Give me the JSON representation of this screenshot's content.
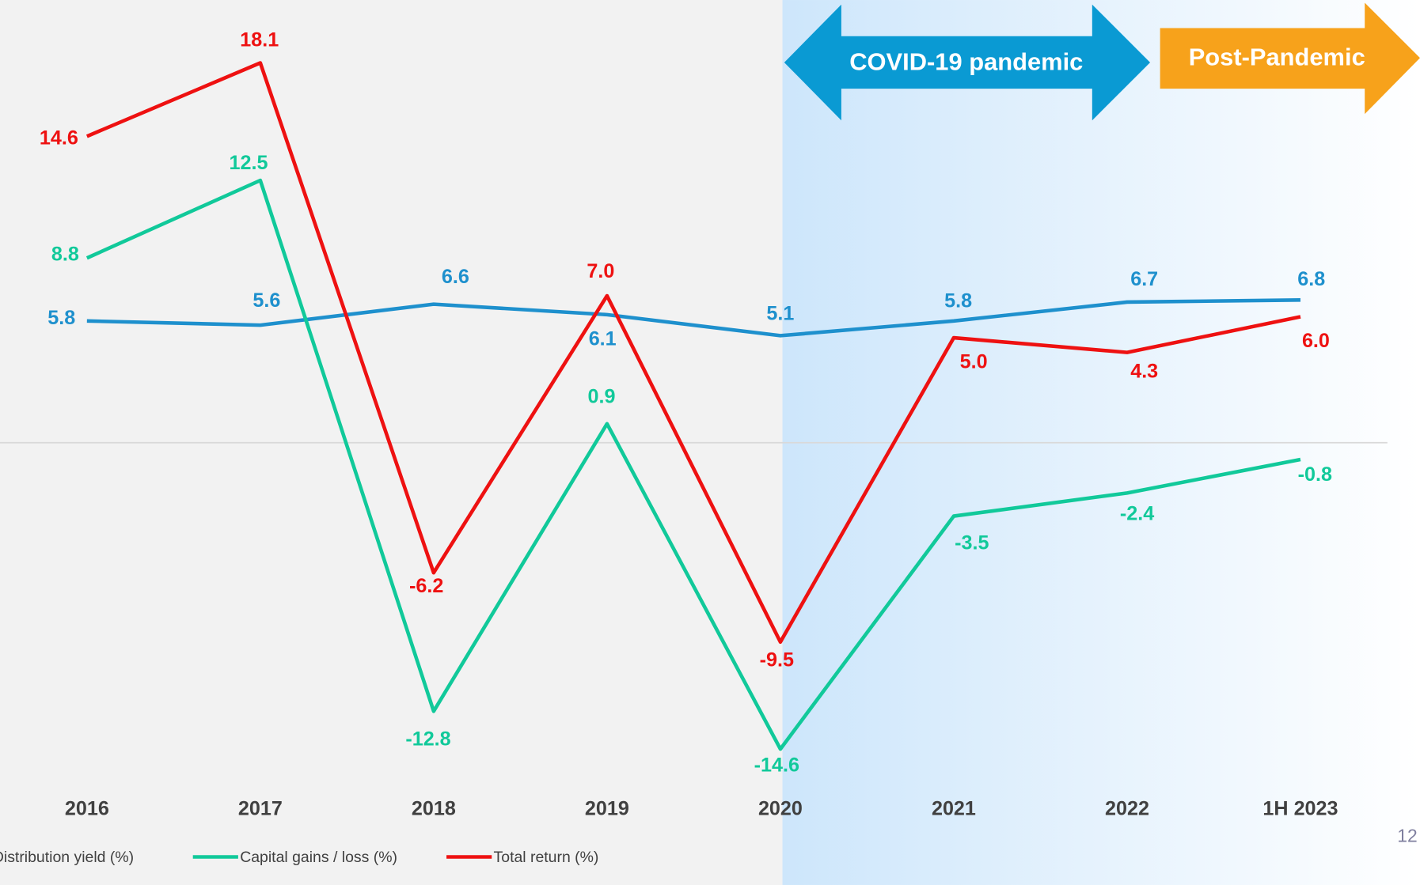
{
  "chart_data": {
    "type": "line",
    "categories": [
      "2016",
      "2017",
      "2018",
      "2019",
      "2020",
      "2021",
      "2022",
      "1H 2023"
    ],
    "series": [
      {
        "name": "Distribution yield (%)",
        "color": "#1e90cd",
        "values": [
          5.8,
          5.6,
          6.6,
          6.1,
          5.1,
          5.8,
          6.7,
          6.8
        ],
        "value_labels": [
          "5.8",
          "5.6",
          "6.6",
          "6.1",
          "5.1",
          "5.8",
          "6.7",
          "6.8"
        ]
      },
      {
        "name": "Capital gains / loss (%)",
        "color": "#11c99a",
        "values": [
          8.8,
          12.5,
          -12.8,
          0.9,
          -14.6,
          -3.5,
          -2.4,
          -0.8
        ],
        "value_labels": [
          "8.8",
          "12.5",
          "-12.8",
          "0.9",
          "-14.6",
          "-3.5",
          "-2.4",
          "-0.8"
        ]
      },
      {
        "name": "Total return (%)",
        "color": "#ee1111",
        "values": [
          14.6,
          18.1,
          -6.2,
          7.0,
          -9.5,
          5.0,
          4.3,
          6.0
        ],
        "value_labels": [
          "14.6",
          "18.1",
          "-6.2",
          "7.0",
          "-9.5",
          "5.0",
          "4.3",
          "6.0"
        ]
      }
    ],
    "ylim": [
      -18,
      20
    ],
    "annotations": [
      "COVID-19 pandemic",
      "Post-Pandemic"
    ],
    "page_number": "12"
  }
}
